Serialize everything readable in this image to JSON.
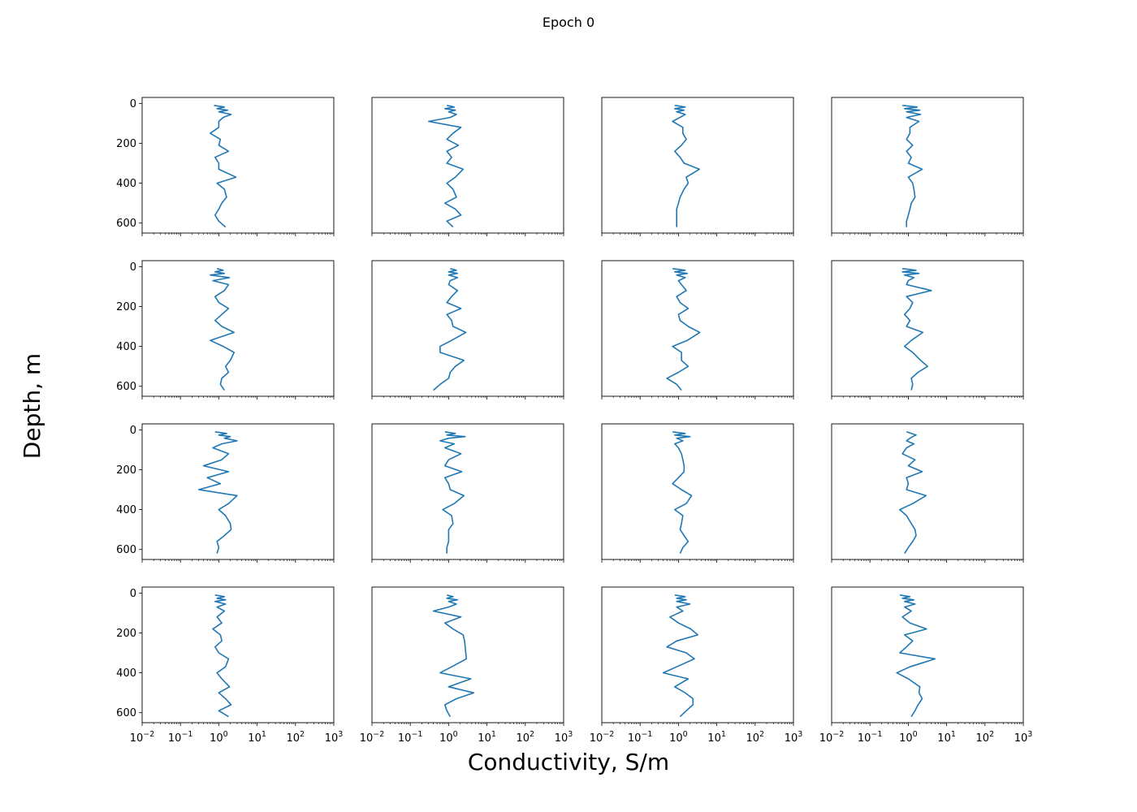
{
  "figure": {
    "title": "Epoch 0",
    "xlabel": "Conductivity, S/m",
    "ylabel": "Depth, m"
  },
  "colors": {
    "line": "#1f77b4",
    "frame": "#000000"
  },
  "chart_data": {
    "type": "line",
    "layout": {
      "rows": 4,
      "cols": 4
    },
    "xscale": "log",
    "xlim": [
      0.01,
      1000
    ],
    "ylim": [
      650,
      -30
    ],
    "y_inverted": true,
    "xticks": [
      {
        "base": "10",
        "exp": "−2"
      },
      {
        "base": "10",
        "exp": "−1"
      },
      {
        "base": "10",
        "exp": "0"
      },
      {
        "base": "10",
        "exp": "1"
      },
      {
        "base": "10",
        "exp": "2"
      },
      {
        "base": "10",
        "exp": "3"
      }
    ],
    "yticks": [
      "0",
      "200",
      "400",
      "600"
    ],
    "ytick_values": [
      0,
      200,
      400,
      600
    ],
    "grid": false,
    "legend": "none",
    "subplots": [
      {
        "depth": [
          10,
          18,
          26,
          34,
          42,
          55,
          70,
          90,
          120,
          150,
          180,
          210,
          240,
          270,
          300,
          330,
          370,
          400,
          430,
          470,
          500,
          530,
          560,
          590,
          620
        ],
        "conductivity": [
          0.75,
          1.4,
          0.9,
          1.7,
          1.0,
          2.1,
          1.3,
          1.0,
          1.0,
          0.6,
          1.1,
          1.0,
          1.8,
          0.8,
          1.0,
          1.0,
          2.8,
          0.9,
          1.4,
          1.6,
          1.2,
          1.0,
          0.8,
          1.0,
          1.5
        ]
      },
      {
        "depth": [
          10,
          18,
          26,
          34,
          42,
          55,
          70,
          90,
          120,
          150,
          180,
          210,
          240,
          270,
          300,
          330,
          370,
          400,
          430,
          470,
          500,
          530,
          560,
          590,
          620
        ],
        "conductivity": [
          0.9,
          1.4,
          0.8,
          1.5,
          1.0,
          1.6,
          1.1,
          0.3,
          2.1,
          1.3,
          0.9,
          1.8,
          0.9,
          1.2,
          0.9,
          2.4,
          1.5,
          0.9,
          1.3,
          1.6,
          0.8,
          1.5,
          2.1,
          0.9,
          1.3
        ]
      },
      {
        "depth": [
          10,
          18,
          26,
          34,
          42,
          55,
          70,
          90,
          120,
          150,
          180,
          210,
          240,
          270,
          300,
          330,
          370,
          400,
          430,
          470,
          500,
          530,
          560,
          590,
          620
        ],
        "conductivity": [
          0.8,
          1.5,
          0.8,
          1.4,
          0.9,
          1.5,
          1.1,
          0.7,
          1.3,
          1.3,
          1.6,
          1.2,
          0.8,
          1.1,
          1.4,
          3.5,
          1.6,
          1.8,
          1.4,
          1.1,
          1.0,
          0.9,
          0.9,
          0.9,
          0.9
        ]
      },
      {
        "depth": [
          10,
          18,
          26,
          34,
          42,
          55,
          70,
          90,
          120,
          150,
          180,
          210,
          240,
          270,
          300,
          330,
          370,
          400,
          430,
          470,
          500,
          530,
          560,
          590,
          620
        ],
        "conductivity": [
          0.7,
          1.7,
          0.8,
          2.0,
          0.9,
          2.1,
          0.9,
          1.9,
          1.1,
          1.1,
          0.9,
          1.3,
          0.9,
          1.2,
          1.0,
          2.3,
          1.0,
          1.3,
          1.4,
          1.5,
          1.2,
          1.1,
          1.0,
          0.9,
          0.9
        ]
      },
      {
        "depth": [
          10,
          18,
          26,
          34,
          42,
          55,
          70,
          90,
          120,
          150,
          180,
          210,
          240,
          270,
          300,
          330,
          370,
          400,
          430,
          470,
          500,
          530,
          560,
          590,
          620
        ],
        "conductivity": [
          0.9,
          1.3,
          0.8,
          1.4,
          0.6,
          1.9,
          0.7,
          1.8,
          1.4,
          0.8,
          1.0,
          1.8,
          1.2,
          0.8,
          1.2,
          2.5,
          0.6,
          1.3,
          2.5,
          2.0,
          1.5,
          1.8,
          1.2,
          1.1,
          1.4
        ]
      },
      {
        "depth": [
          10,
          18,
          26,
          34,
          42,
          55,
          70,
          90,
          120,
          150,
          180,
          210,
          240,
          270,
          300,
          330,
          370,
          400,
          430,
          470,
          500,
          530,
          560,
          590,
          620
        ],
        "conductivity": [
          1.1,
          1.6,
          1.0,
          1.7,
          1.0,
          1.7,
          1.1,
          1.0,
          1.7,
          1.2,
          0.9,
          2.1,
          0.9,
          1.2,
          1.3,
          2.8,
          1.2,
          0.6,
          0.6,
          2.5,
          1.5,
          1.1,
          1.0,
          0.6,
          0.4
        ]
      },
      {
        "depth": [
          10,
          18,
          26,
          34,
          42,
          55,
          70,
          90,
          120,
          150,
          180,
          210,
          240,
          270,
          300,
          330,
          370,
          400,
          430,
          470,
          500,
          530,
          560,
          590,
          620
        ],
        "conductivity": [
          0.7,
          1.5,
          0.8,
          1.7,
          0.9,
          1.5,
          1.0,
          1.2,
          1.6,
          0.9,
          1.1,
          1.8,
          1.0,
          1.1,
          1.8,
          3.6,
          1.7,
          0.7,
          1.2,
          1.2,
          1.8,
          1.0,
          0.5,
          0.9,
          1.2
        ]
      },
      {
        "depth": [
          10,
          18,
          26,
          34,
          42,
          55,
          70,
          90,
          120,
          150,
          180,
          210,
          240,
          270,
          300,
          330,
          370,
          400,
          430,
          470,
          500,
          530,
          560,
          590,
          620
        ],
        "conductivity": [
          0.7,
          1.6,
          0.7,
          1.9,
          0.8,
          1.4,
          1.0,
          0.9,
          4.0,
          0.9,
          1.3,
          1.1,
          0.8,
          1.1,
          0.9,
          2.4,
          1.2,
          0.8,
          1.3,
          2.1,
          3.2,
          1.8,
          1.2,
          1.3,
          1.2
        ]
      },
      {
        "depth": [
          10,
          18,
          26,
          34,
          42,
          55,
          70,
          90,
          120,
          150,
          180,
          210,
          240,
          270,
          300,
          330,
          370,
          400,
          430,
          470,
          500,
          530,
          560,
          590,
          620
        ],
        "conductivity": [
          0.8,
          1.6,
          1.0,
          2.0,
          1.4,
          3.0,
          1.2,
          0.7,
          1.8,
          1.2,
          0.4,
          1.8,
          0.5,
          1.1,
          0.3,
          3.0,
          1.8,
          1.0,
          1.5,
          2.0,
          2.1,
          1.4,
          0.9,
          1.0,
          0.9
        ]
      },
      {
        "depth": [
          10,
          18,
          26,
          34,
          42,
          55,
          70,
          90,
          120,
          150,
          180,
          210,
          240,
          270,
          300,
          330,
          370,
          400,
          430,
          470,
          500,
          530,
          560,
          590,
          620
        ],
        "conductivity": [
          0.8,
          1.5,
          0.9,
          2.7,
          1.0,
          0.6,
          1.4,
          0.8,
          2.1,
          1.0,
          0.8,
          2.2,
          0.8,
          1.0,
          1.1,
          2.5,
          1.4,
          0.7,
          1.2,
          1.3,
          1.0,
          1.0,
          1.0,
          0.9,
          0.9
        ]
      },
      {
        "depth": [
          10,
          18,
          26,
          34,
          42,
          55,
          70,
          90,
          120,
          150,
          180,
          210,
          240,
          270,
          300,
          330,
          370,
          400,
          430,
          470,
          500,
          530,
          560,
          590,
          620
        ],
        "conductivity": [
          0.7,
          1.5,
          0.8,
          2.0,
          0.9,
          1.3,
          0.8,
          1.0,
          1.2,
          1.3,
          1.4,
          1.4,
          1.0,
          0.7,
          1.2,
          2.2,
          1.6,
          0.8,
          1.3,
          1.2,
          1.1,
          1.4,
          1.8,
          1.3,
          1.1
        ]
      },
      {
        "depth": [
          10,
          18,
          26,
          34,
          42,
          55,
          70,
          90,
          120,
          150,
          180,
          210,
          240,
          270,
          300,
          330,
          370,
          400,
          430,
          470,
          500,
          530,
          560,
          590,
          620
        ],
        "conductivity": [
          0.9,
          1.2,
          1.6,
          1.3,
          1.1,
          0.9,
          1.4,
          0.9,
          0.7,
          1.5,
          1.0,
          2.3,
          0.9,
          1.0,
          0.9,
          2.9,
          1.3,
          0.6,
          0.9,
          1.2,
          1.5,
          1.6,
          1.3,
          1.0,
          0.8
        ]
      },
      {
        "depth": [
          10,
          18,
          26,
          34,
          42,
          55,
          70,
          90,
          120,
          150,
          180,
          210,
          240,
          270,
          300,
          330,
          370,
          400,
          430,
          470,
          500,
          530,
          560,
          590,
          620
        ],
        "conductivity": [
          0.8,
          1.4,
          0.9,
          1.5,
          0.8,
          1.5,
          0.9,
          1.4,
          0.9,
          1.2,
          0.7,
          1.1,
          1.2,
          0.8,
          1.0,
          1.8,
          1.5,
          0.9,
          1.2,
          1.9,
          1.0,
          1.5,
          2.1,
          1.0,
          1.8
        ]
      },
      {
        "depth": [
          10,
          18,
          26,
          34,
          42,
          55,
          70,
          90,
          120,
          150,
          180,
          210,
          240,
          270,
          300,
          330,
          370,
          400,
          430,
          470,
          500,
          530,
          560,
          590,
          620
        ],
        "conductivity": [
          0.9,
          1.3,
          0.9,
          1.7,
          1.0,
          1.6,
          1.0,
          0.4,
          2.1,
          0.8,
          1.3,
          2.4,
          2.6,
          2.7,
          2.8,
          2.9,
          1.2,
          0.6,
          3.8,
          1.0,
          4.5,
          1.6,
          0.8,
          0.9,
          1.1
        ]
      },
      {
        "depth": [
          10,
          18,
          26,
          34,
          42,
          55,
          70,
          90,
          120,
          150,
          180,
          210,
          240,
          270,
          300,
          330,
          370,
          400,
          430,
          470,
          500,
          530,
          560,
          590,
          620
        ],
        "conductivity": [
          0.8,
          1.5,
          0.9,
          1.6,
          0.9,
          2.0,
          0.9,
          1.3,
          0.6,
          1.0,
          2.1,
          3.2,
          0.9,
          0.5,
          1.6,
          2.6,
          0.9,
          0.4,
          1.8,
          0.8,
          1.5,
          2.4,
          2.4,
          1.6,
          1.1
        ]
      },
      {
        "depth": [
          10,
          18,
          26,
          34,
          42,
          55,
          70,
          90,
          120,
          150,
          180,
          210,
          240,
          270,
          300,
          330,
          370,
          400,
          430,
          470,
          500,
          530,
          560,
          590,
          620
        ],
        "conductivity": [
          0.6,
          1.1,
          0.7,
          1.4,
          0.8,
          1.5,
          0.8,
          1.2,
          0.7,
          1.1,
          3.0,
          0.8,
          1.3,
          0.9,
          0.6,
          5.0,
          1.1,
          0.5,
          1.0,
          2.0,
          1.9,
          2.3,
          1.8,
          1.5,
          1.2
        ]
      }
    ]
  }
}
